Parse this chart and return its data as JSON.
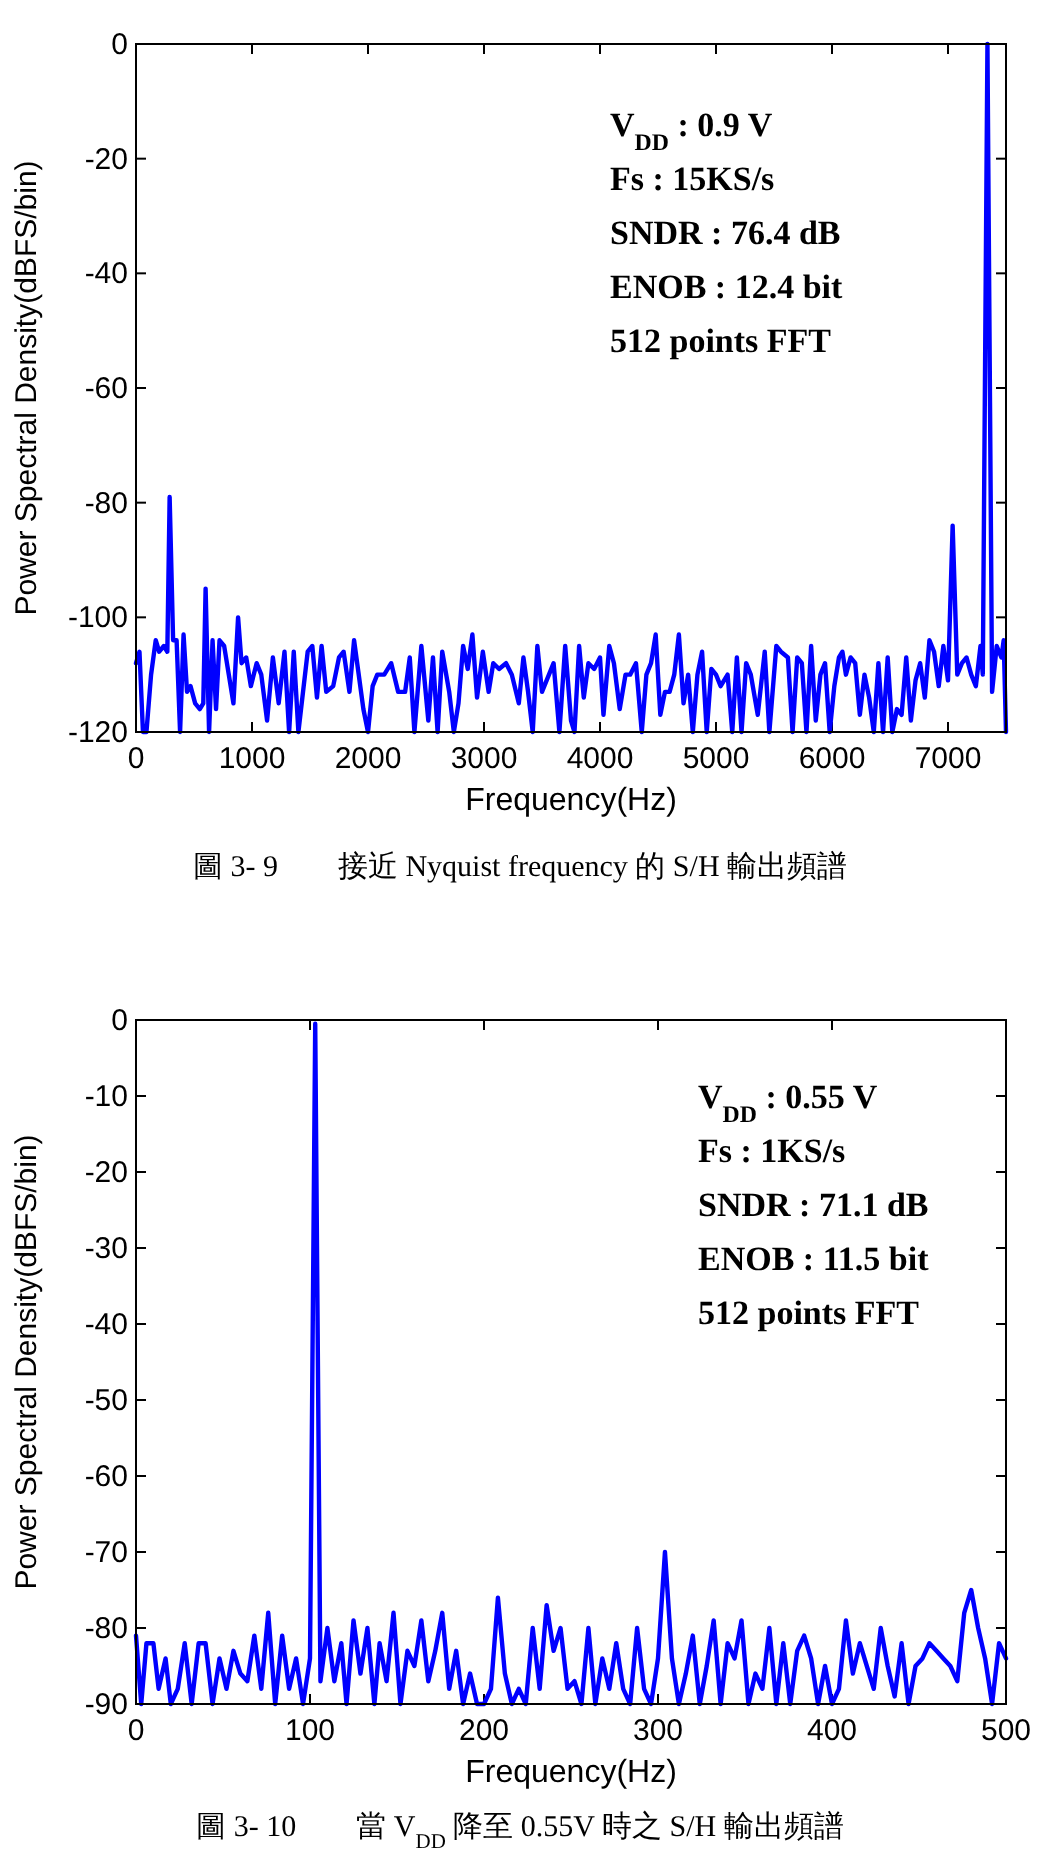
{
  "chart_data": [
    {
      "type": "line",
      "xlabel": "Frequency(Hz)",
      "ylabel": "Power Spectral Density(dBFS/bin)",
      "xlim": [
        0,
        7500
      ],
      "ylim": [
        -120,
        0
      ],
      "xticks": [
        0,
        1000,
        2000,
        3000,
        4000,
        5000,
        6000,
        7000
      ],
      "yticks": [
        -120,
        -100,
        -80,
        -60,
        -40,
        -20,
        0
      ],
      "annotations": [
        "V$_{DD}$ : 0.9 V",
        "Fs : 15KS/s",
        "SNDR : 76.4 dB",
        "ENOB : 12.4 bit",
        "512 points FFT",
        "圖 3- 9　　接近 Nyquist frequency 的 S/H 輸出頻譜"
      ],
      "series": [
        {
          "color": "#0000ff",
          "x": [
            0,
            30,
            60,
            90,
            130,
            170,
            200,
            240,
            270,
            290,
            320,
            350,
            380,
            410,
            440,
            470,
            510,
            550,
            580,
            600,
            630,
            660,
            690,
            720,
            760,
            800,
            840,
            880,
            910,
            950,
            990,
            1040,
            1080,
            1130,
            1180,
            1230,
            1280,
            1320,
            1360,
            1400,
            1440,
            1480,
            1520,
            1560,
            1600,
            1640,
            1700,
            1750,
            1790,
            1840,
            1880,
            1920,
            1960,
            2000,
            2040,
            2080,
            2140,
            2200,
            2260,
            2320,
            2360,
            2400,
            2460,
            2520,
            2560,
            2600,
            2640,
            2700,
            2740,
            2780,
            2820,
            2860,
            2900,
            2940,
            2990,
            3040,
            3080,
            3130,
            3190,
            3240,
            3300,
            3340,
            3380,
            3420,
            3460,
            3500,
            3560,
            3600,
            3650,
            3700,
            3750,
            3780,
            3820,
            3860,
            3900,
            3950,
            4000,
            4030,
            4080,
            4120,
            4170,
            4220,
            4260,
            4310,
            4360,
            4400,
            4440,
            4480,
            4520,
            4560,
            4600,
            4640,
            4680,
            4720,
            4760,
            4800,
            4840,
            4880,
            4920,
            4960,
            5000,
            5040,
            5100,
            5140,
            5180,
            5220,
            5260,
            5300,
            5360,
            5420,
            5460,
            5520,
            5560,
            5620,
            5660,
            5700,
            5740,
            5780,
            5820,
            5860,
            5900,
            5940,
            5980,
            6020,
            6060,
            6090,
            6120,
            6160,
            6200,
            6240,
            6280,
            6320,
            6360,
            6400,
            6440,
            6480,
            6520,
            6560,
            6600,
            6640,
            6680,
            6720,
            6760,
            6800,
            6840,
            6880,
            6920,
            6960,
            7000,
            7040,
            7080,
            7120,
            7160,
            7200,
            7240,
            7280,
            7300,
            7340,
            7380,
            7420,
            7460,
            7480,
            7500
          ],
          "values": [
            -108,
            -106,
            -120,
            -120,
            -110,
            -104,
            -106,
            -105,
            -106,
            -79,
            -104,
            -104,
            -120,
            -103,
            -113,
            -112,
            -115,
            -116,
            -115,
            -95,
            -120,
            -104,
            -116,
            -104,
            -105,
            -110,
            -115,
            -100,
            -108,
            -107,
            -112,
            -108,
            -110,
            -118,
            -107,
            -115,
            -106,
            -120,
            -106,
            -120,
            -113,
            -106,
            -105,
            -114,
            -105,
            -113,
            -112,
            -107,
            -106,
            -113,
            -104,
            -110,
            -116,
            -120,
            -112,
            -110,
            -110,
            -108,
            -113,
            -113,
            -107,
            -120,
            -105,
            -118,
            -107,
            -120,
            -106,
            -113,
            -120,
            -115,
            -105,
            -109,
            -103,
            -114,
            -106,
            -113,
            -108,
            -109,
            -108,
            -110,
            -115,
            -107,
            -113,
            -120,
            -105,
            -113,
            -110,
            -108,
            -120,
            -105,
            -118,
            -120,
            -105,
            -114,
            -108,
            -109,
            -107,
            -117,
            -105,
            -108,
            -116,
            -110,
            -110,
            -108,
            -120,
            -110,
            -108,
            -103,
            -117,
            -113,
            -113,
            -110,
            -103,
            -115,
            -110,
            -120,
            -110,
            -106,
            -120,
            -109,
            -110,
            -112,
            -110,
            -120,
            -107,
            -120,
            -108,
            -110,
            -117,
            -106,
            -120,
            -105,
            -106,
            -107,
            -120,
            -107,
            -108,
            -120,
            -105,
            -118,
            -110,
            -108,
            -120,
            -112,
            -107,
            -106,
            -110,
            -107,
            -108,
            -117,
            -110,
            -114,
            -120,
            -108,
            -120,
            -107,
            -120,
            -116,
            -117,
            -107,
            -118,
            -111,
            -108,
            -114,
            -104,
            -106,
            -112,
            -105,
            -111,
            -84,
            -110,
            -108,
            -107,
            -110,
            -112,
            -105,
            -110,
            0,
            -113,
            -105,
            -107,
            -104,
            -120
          ]
        }
      ]
    },
    {
      "type": "line",
      "xlabel": "Frequency(Hz)",
      "ylabel": "Power Spectral Density(dBFS/bin)",
      "xlim": [
        0,
        500
      ],
      "ylim": [
        -90,
        0
      ],
      "xticks": [
        0,
        100,
        200,
        300,
        400,
        500
      ],
      "yticks": [
        -90,
        -80,
        -70,
        -60,
        -50,
        -40,
        -30,
        -20,
        -10,
        0
      ],
      "annotations": [
        "V$_{DD}$ : 0.55 V",
        "Fs : 1KS/s",
        "SNDR : 71.1 dB",
        "ENOB : 11.5 bit",
        "512 points FFT",
        "圖 3- 10　　當 V$_{DD}$ 降至 0.55V 時之 S/H 輸出頻譜"
      ],
      "series": [
        {
          "color": "#0000ff",
          "x": [
            0,
            3,
            6,
            10,
            13,
            17,
            20,
            24,
            28,
            32,
            36,
            40,
            44,
            48,
            52,
            56,
            60,
            64,
            68,
            72,
            76,
            80,
            84,
            88,
            92,
            96,
            100,
            103,
            106,
            110,
            114,
            118,
            121,
            125,
            129,
            133,
            137,
            140,
            144,
            148,
            152,
            156,
            160,
            164,
            168,
            172,
            176,
            180,
            184,
            188,
            192,
            196,
            200,
            204,
            208,
            212,
            216,
            220,
            224,
            228,
            232,
            236,
            240,
            244,
            248,
            252,
            256,
            260,
            264,
            268,
            272,
            276,
            280,
            284,
            288,
            292,
            296,
            300,
            304,
            308,
            312,
            316,
            320,
            324,
            328,
            332,
            336,
            340,
            344,
            348,
            352,
            356,
            360,
            364,
            368,
            372,
            376,
            380,
            384,
            388,
            392,
            396,
            400,
            404,
            408,
            412,
            416,
            420,
            424,
            428,
            432,
            436,
            440,
            444,
            448,
            452,
            456,
            460,
            464,
            468,
            472,
            476,
            480,
            484,
            488,
            492,
            496,
            500
          ],
          "values": [
            -81,
            -90,
            -82,
            -82,
            -88,
            -84,
            -90,
            -88,
            -82,
            -90,
            -82,
            -82,
            -90,
            -84,
            -88,
            -83,
            -86,
            -87,
            -81,
            -88,
            -78,
            -90,
            -81,
            -88,
            -84,
            -90,
            -84,
            -0.5,
            -87,
            -80,
            -87,
            -82,
            -90,
            -79,
            -86,
            -80,
            -90,
            -82,
            -87,
            -78,
            -90,
            -83,
            -85,
            -79,
            -87,
            -83,
            -78,
            -88,
            -83,
            -90,
            -86,
            -90,
            -90,
            -88,
            -76,
            -86,
            -90,
            -88,
            -90,
            -80,
            -88,
            -77,
            -83,
            -80,
            -88,
            -87,
            -90,
            -80,
            -90,
            -84,
            -88,
            -82,
            -88,
            -90,
            -80,
            -88,
            -90,
            -84,
            -70,
            -84,
            -90,
            -86,
            -81,
            -90,
            -85,
            -79,
            -90,
            -82,
            -84,
            -79,
            -90,
            -86,
            -88,
            -80,
            -90,
            -82,
            -90,
            -83,
            -81,
            -84,
            -90,
            -85,
            -90,
            -88,
            -79,
            -86,
            -82,
            -85,
            -88,
            -80,
            -85,
            -89,
            -82,
            -90,
            -85,
            -84,
            -82,
            -83,
            -84,
            -85,
            -87,
            -78,
            -75,
            -80,
            -84,
            -90,
            -82,
            -84
          ]
        }
      ]
    }
  ]
}
